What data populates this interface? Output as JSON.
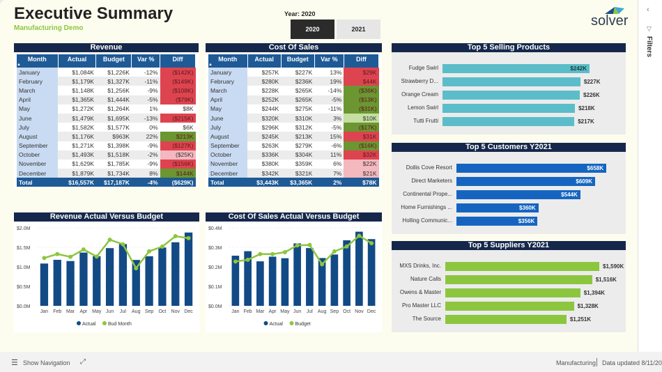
{
  "header": {
    "title": "Executive Summary",
    "subtitle": "Manufacturing Demo",
    "year_label": "Year: 2020",
    "year_buttons": [
      "2020",
      "2021"
    ],
    "selected_year": "2020",
    "logo_text": "solver"
  },
  "filters_pane": {
    "label": "Filters"
  },
  "bottom": {
    "show_navigation": "Show Navigation",
    "workspace": "Manufacturing",
    "updated": "Data updated 8/11/20"
  },
  "colors": {
    "navy": "#15284b",
    "blue": "#1e5a96",
    "red": "#de4450",
    "pink": "#f4b8bf",
    "darkgreen": "#6b9631",
    "lightgreen": "#c4df9f",
    "teal": "#5bbdc9",
    "custblue": "#1565c0",
    "supgreen": "#8cc63f"
  },
  "revenue": {
    "title": "Revenue",
    "columns": [
      "Month",
      "Actual",
      "Budget",
      "Var %",
      "Diff"
    ],
    "rows": [
      {
        "month": "January",
        "actual": "$1,084K",
        "budget": "$1,226K",
        "var": "-12%",
        "diff": "($142K)",
        "diff_color": "#de4450"
      },
      {
        "month": "February",
        "actual": "$1,179K",
        "budget": "$1,327K",
        "var": "-11%",
        "diff": "($149K)",
        "diff_color": "#de4450"
      },
      {
        "month": "March",
        "actual": "$1,148K",
        "budget": "$1,256K",
        "var": "-9%",
        "diff": "($108K)",
        "diff_color": "#de4450"
      },
      {
        "month": "April",
        "actual": "$1,365K",
        "budget": "$1,444K",
        "var": "-5%",
        "diff": "($79K)",
        "diff_color": "#de4450"
      },
      {
        "month": "May",
        "actual": "$1,272K",
        "budget": "$1,264K",
        "var": "1%",
        "diff": "$8K",
        "diff_color": ""
      },
      {
        "month": "June",
        "actual": "$1,479K",
        "budget": "$1,695K",
        "var": "-13%",
        "diff": "($215K)",
        "diff_color": "#de4450"
      },
      {
        "month": "July",
        "actual": "$1,582K",
        "budget": "$1,577K",
        "var": "0%",
        "diff": "$6K",
        "diff_color": ""
      },
      {
        "month": "August",
        "actual": "$1,176K",
        "budget": "$963K",
        "var": "22%",
        "diff": "$213K",
        "diff_color": "#6b9631"
      },
      {
        "month": "September",
        "actual": "$1,271K",
        "budget": "$1,398K",
        "var": "-9%",
        "diff": "($127K)",
        "diff_color": "#de4450"
      },
      {
        "month": "October",
        "actual": "$1,493K",
        "budget": "$1,518K",
        "var": "-2%",
        "diff": "($25K)",
        "diff_color": "#f4b8bf"
      },
      {
        "month": "November",
        "actual": "$1,629K",
        "budget": "$1,785K",
        "var": "-9%",
        "diff": "($156K)",
        "diff_color": "#de4450"
      },
      {
        "month": "December",
        "actual": "$1,879K",
        "budget": "$1,734K",
        "var": "8%",
        "diff": "$144K",
        "diff_color": "#6b9631"
      }
    ],
    "total": {
      "month": "Total",
      "actual": "$16,557K",
      "budget": "$17,187K",
      "var": "-4%",
      "diff": "($629K)"
    }
  },
  "cost_of_sales": {
    "title": "Cost Of Sales",
    "columns": [
      "Month",
      "Actual",
      "Budget",
      "Var %",
      "Diff"
    ],
    "rows": [
      {
        "month": "January",
        "actual": "$257K",
        "budget": "$227K",
        "var": "13%",
        "diff": "$29K",
        "diff_color": "#de4450"
      },
      {
        "month": "February",
        "actual": "$280K",
        "budget": "$236K",
        "var": "19%",
        "diff": "$44K",
        "diff_color": "#de4450"
      },
      {
        "month": "March",
        "actual": "$228K",
        "budget": "$265K",
        "var": "-14%",
        "diff": "($36K)",
        "diff_color": "#6b9631"
      },
      {
        "month": "April",
        "actual": "$252K",
        "budget": "$265K",
        "var": "-5%",
        "diff": "($13K)",
        "diff_color": "#6b9631"
      },
      {
        "month": "May",
        "actual": "$244K",
        "budget": "$275K",
        "var": "-11%",
        "diff": "($31K)",
        "diff_color": "#6b9631"
      },
      {
        "month": "June",
        "actual": "$320K",
        "budget": "$310K",
        "var": "3%",
        "diff": "$10K",
        "diff_color": "#c4df9f"
      },
      {
        "month": "July",
        "actual": "$296K",
        "budget": "$312K",
        "var": "-5%",
        "diff": "($17K)",
        "diff_color": "#6b9631"
      },
      {
        "month": "August",
        "actual": "$245K",
        "budget": "$213K",
        "var": "15%",
        "diff": "$31K",
        "diff_color": "#de4450"
      },
      {
        "month": "September",
        "actual": "$263K",
        "budget": "$279K",
        "var": "-6%",
        "diff": "($16K)",
        "diff_color": "#6b9631"
      },
      {
        "month": "October",
        "actual": "$336K",
        "budget": "$304K",
        "var": "11%",
        "diff": "$32K",
        "diff_color": "#de4450"
      },
      {
        "month": "November",
        "actual": "$380K",
        "budget": "$359K",
        "var": "6%",
        "diff": "$22K",
        "diff_color": "#f4b8bf"
      },
      {
        "month": "December",
        "actual": "$342K",
        "budget": "$321K",
        "var": "7%",
        "diff": "$21K",
        "diff_color": "#f4b8bf"
      }
    ],
    "total": {
      "month": "Total",
      "actual": "$3,443K",
      "budget": "$3,365K",
      "var": "2%",
      "diff": "$78K"
    }
  },
  "top_products": {
    "title": "Top 5 Selling Products",
    "items": [
      {
        "label": "Fudge Swirl",
        "value": 242,
        "text": "$242K"
      },
      {
        "label": "Strawberry D...",
        "value": 227,
        "text": "$227K"
      },
      {
        "label": "Orange Cream",
        "value": 226,
        "text": "$226K"
      },
      {
        "label": "Lemon Swirl",
        "value": 218,
        "text": "$218K"
      },
      {
        "label": "Tutti Frutti",
        "value": 217,
        "text": "$217K"
      }
    ]
  },
  "top_customers": {
    "title": "Top 5 Customers Y2021",
    "items": [
      {
        "label": "Dollis Cove Resort",
        "value": 658,
        "text": "$658K"
      },
      {
        "label": "Direct Marketers",
        "value": 609,
        "text": "$609K"
      },
      {
        "label": "Continental Prope...",
        "value": 544,
        "text": "$544K"
      },
      {
        "label": "Home Furnishings ...",
        "value": 360,
        "text": "$360K"
      },
      {
        "label": "Holling Communic...",
        "value": 356,
        "text": "$356K"
      }
    ]
  },
  "top_suppliers": {
    "title": "Top 5 Suppliers Y2021",
    "items": [
      {
        "label": "MXS Drinks, Inc.",
        "value": 1590,
        "text": "$1,590K"
      },
      {
        "label": "Nature Calls",
        "value": 1516,
        "text": "$1,516K"
      },
      {
        "label": "Owens & Master",
        "value": 1394,
        "text": "$1,394K"
      },
      {
        "label": "Pro Master LLC",
        "value": 1328,
        "text": "$1,328K"
      },
      {
        "label": "The Source",
        "value": 1251,
        "text": "$1,251K"
      }
    ]
  },
  "chart_data": [
    {
      "type": "bar",
      "title": "Revenue Actual Versus Budget",
      "categories": [
        "Jan",
        "Feb",
        "Mar",
        "Apr",
        "May",
        "Jun",
        "Jul",
        "Aug",
        "Sep",
        "Oct",
        "Nov",
        "Dec"
      ],
      "series": [
        {
          "name": "Actual",
          "type": "bar",
          "values": [
            1.084,
            1.179,
            1.148,
            1.365,
            1.272,
            1.479,
            1.582,
            1.176,
            1.271,
            1.493,
            1.629,
            1.879
          ]
        },
        {
          "name": "Bud Month",
          "type": "line",
          "values": [
            1.226,
            1.327,
            1.256,
            1.444,
            1.264,
            1.695,
            1.577,
            0.963,
            1.398,
            1.518,
            1.785,
            1.734
          ]
        }
      ],
      "ylim": [
        0,
        2.0
      ],
      "yticks": [
        "$0.0M",
        "$0.5M",
        "$1.0M",
        "$1.5M",
        "$2.0M"
      ],
      "legend": "bottom"
    },
    {
      "type": "bar",
      "title": "Cost Of Sales Actual Versus Budget",
      "categories": [
        "Jan",
        "Feb",
        "Mar",
        "Apr",
        "May",
        "Jun",
        "Jul",
        "Aug",
        "Sep",
        "Oct",
        "Nov",
        "Dec"
      ],
      "series": [
        {
          "name": "Actual",
          "type": "bar",
          "values": [
            0.257,
            0.28,
            0.228,
            0.252,
            0.244,
            0.32,
            0.296,
            0.245,
            0.263,
            0.336,
            0.38,
            0.342
          ]
        },
        {
          "name": "Budget",
          "type": "line",
          "values": [
            0.227,
            0.236,
            0.265,
            0.265,
            0.275,
            0.31,
            0.312,
            0.213,
            0.279,
            0.304,
            0.359,
            0.321
          ]
        }
      ],
      "ylim": [
        0,
        0.4
      ],
      "yticks": [
        "$0.0M",
        "$0.1M",
        "$0.2M",
        "$0.3M",
        "$0.4M"
      ],
      "legend": "bottom"
    }
  ]
}
